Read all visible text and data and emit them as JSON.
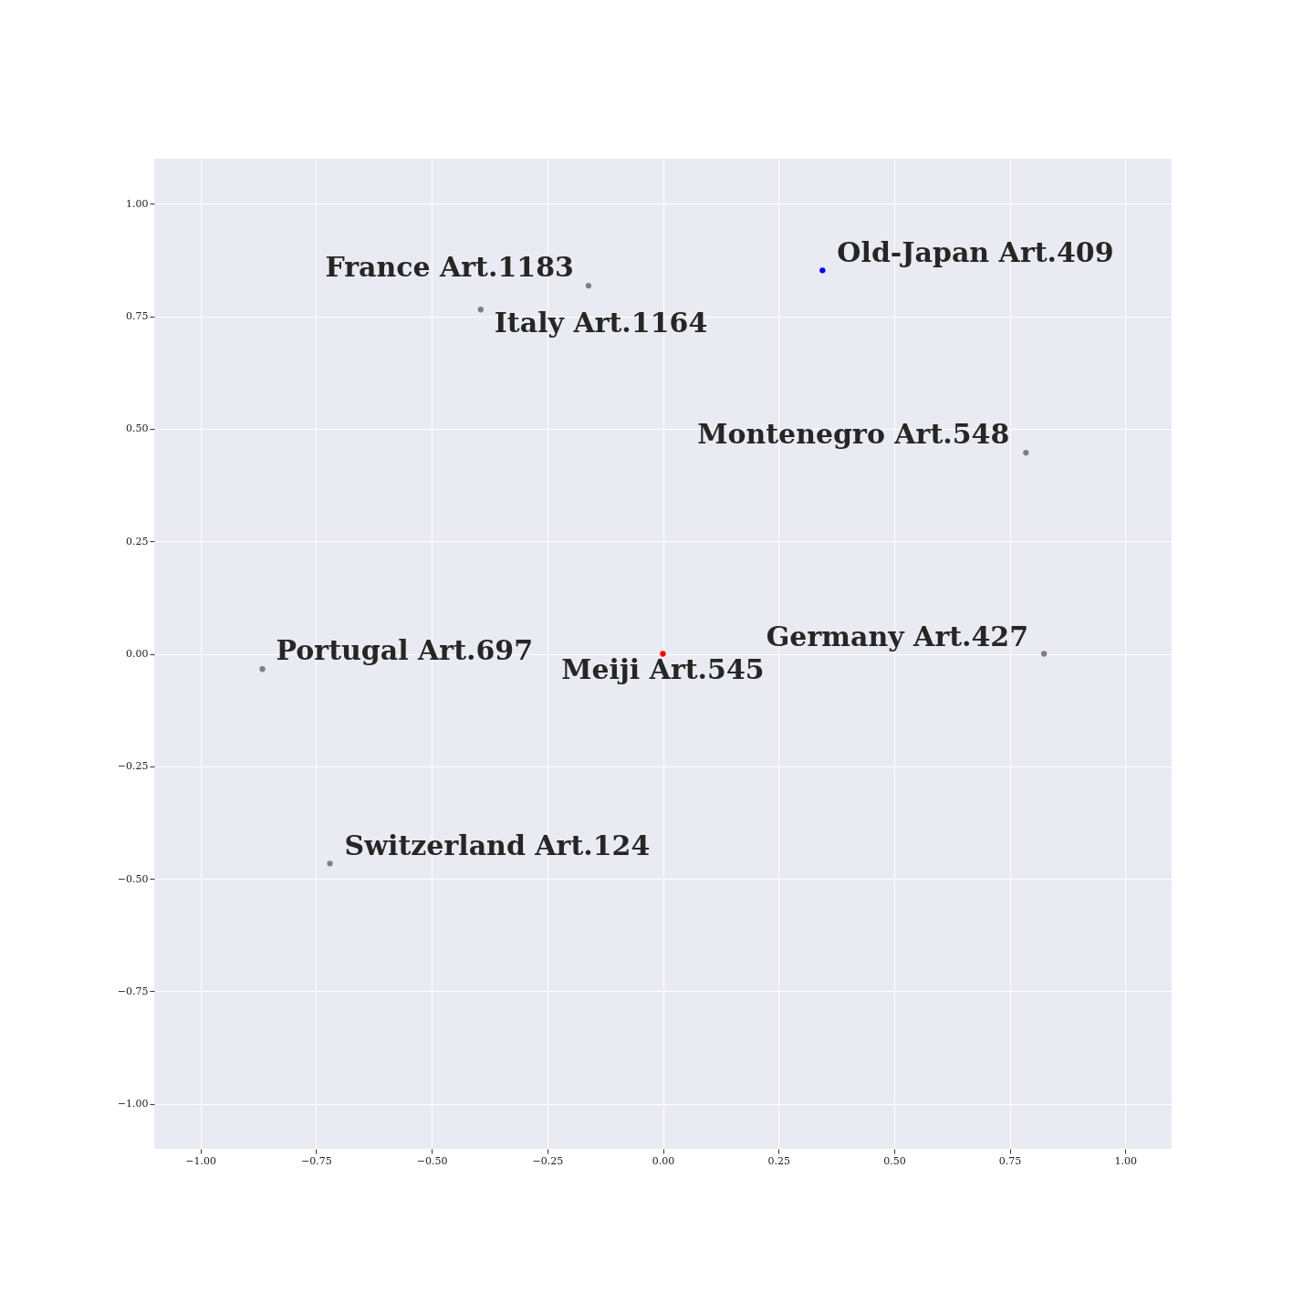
{
  "chart_data": {
    "type": "scatter",
    "xlim": [
      -1.1,
      1.1
    ],
    "ylim": [
      -1.1,
      1.1
    ],
    "xticks": [
      {
        "value": -1,
        "label": "−1.00"
      },
      {
        "value": -0.75,
        "label": "−0.75"
      },
      {
        "value": -0.5,
        "label": "−0.50"
      },
      {
        "value": -0.25,
        "label": "−0.25"
      },
      {
        "value": 0,
        "label": "0.00"
      },
      {
        "value": 0.25,
        "label": "0.25"
      },
      {
        "value": 0.5,
        "label": "0.50"
      },
      {
        "value": 0.75,
        "label": "0.75"
      },
      {
        "value": 1,
        "label": "1.00"
      }
    ],
    "yticks": [
      {
        "value": -1,
        "label": "−1.00"
      },
      {
        "value": -0.75,
        "label": "−0.75"
      },
      {
        "value": -0.5,
        "label": "−0.50"
      },
      {
        "value": -0.25,
        "label": "−0.25"
      },
      {
        "value": 0,
        "label": "0.00"
      },
      {
        "value": 0.25,
        "label": "0.25"
      },
      {
        "value": 0.5,
        "label": "0.50"
      },
      {
        "value": 0.75,
        "label": "0.75"
      },
      {
        "value": 1,
        "label": "1.00"
      }
    ],
    "grid": true,
    "marker": "circle",
    "series": [
      {
        "x": [
          0.345,
          -0.161,
          -0.394,
          0.785,
          0.824,
          -0.866,
          -0.72,
          0
        ],
        "values": [
          0.852,
          0.818,
          0.765,
          0.447,
          0,
          -0.034,
          -0.466,
          0
        ],
        "colors": [
          "#0000ff",
          "#808080",
          "#808080",
          "#808080",
          "#808080",
          "#808080",
          "#808080",
          "#ff0000"
        ]
      }
    ],
    "annotations": [
      {
        "text": "Old-Japan Art.409",
        "x": 0.345,
        "y": 0.852
      },
      {
        "text": "France Art.1183",
        "x": -0.161,
        "y": 0.818
      },
      {
        "text": "Italy Art.1164",
        "x": -0.394,
        "y": 0.765
      },
      {
        "text": "Montenegro Art.548",
        "x": 0.785,
        "y": 0.447
      },
      {
        "text": "Germany Art.427",
        "x": 0.824,
        "y": 0
      },
      {
        "text": "Portugal Art.697",
        "x": -0.866,
        "y": -0.034
      },
      {
        "text": "Switzerland Art.124",
        "x": -0.72,
        "y": -0.466
      },
      {
        "text": "Meiji Art.545",
        "x": 0,
        "y": 0
      }
    ]
  }
}
